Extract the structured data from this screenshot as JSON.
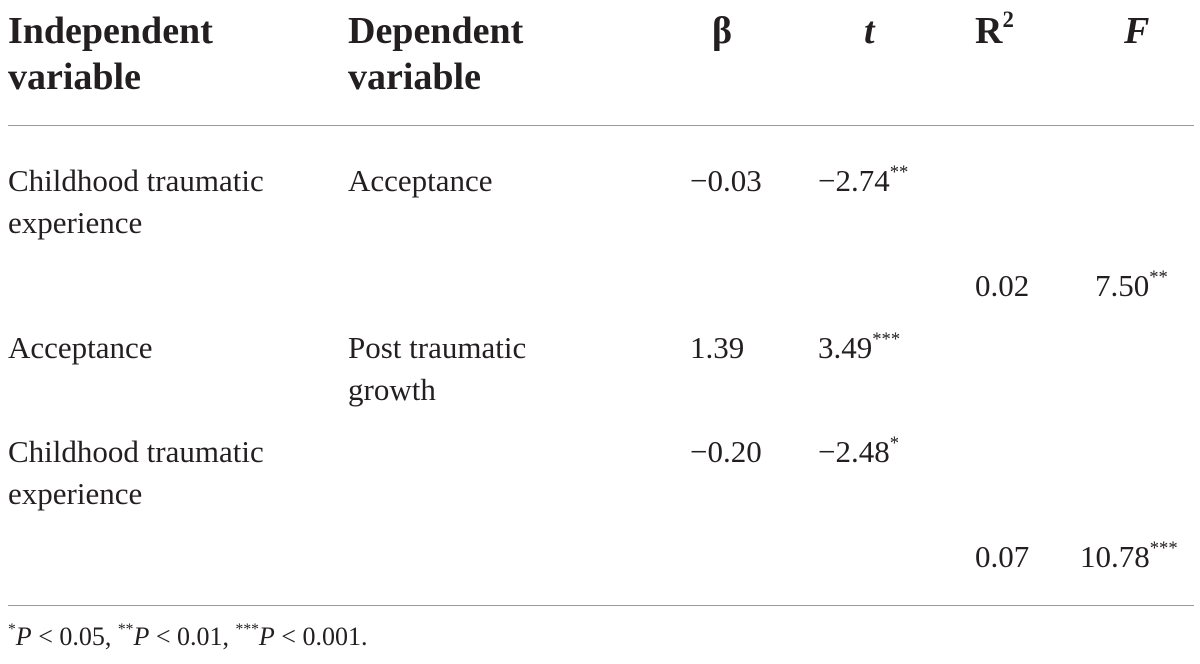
{
  "header": {
    "independent_variable": "Independent variable",
    "dependent_variable": "Dependent variable",
    "beta": "β",
    "t": "t",
    "r_squared_base": "R",
    "r_squared_exp": "2",
    "f": "F"
  },
  "rows": [
    {
      "independent": "Childhood traumatic experience",
      "dependent": "Acceptance",
      "beta": "−0.03",
      "t": "−2.74",
      "t_sig": "**"
    },
    {
      "r2": "0.02",
      "f": "7.50",
      "f_sig": "**"
    },
    {
      "independent": "Acceptance",
      "dependent": "Post traumatic growth",
      "beta": "1.39",
      "t": "3.49",
      "t_sig": "***"
    },
    {
      "independent": "Childhood traumatic experience",
      "beta": "−0.20",
      "t": "−2.48",
      "t_sig": "*"
    },
    {
      "r2": "0.07",
      "f": "10.78",
      "f_sig": "***"
    }
  ],
  "footnote": {
    "s1": "*",
    "p1": "P",
    "v1": " < 0.05, ",
    "s2": "**",
    "p2": "P",
    "v2": " < 0.01, ",
    "s3": "***",
    "p3": "P",
    "v3": " < 0.001."
  }
}
